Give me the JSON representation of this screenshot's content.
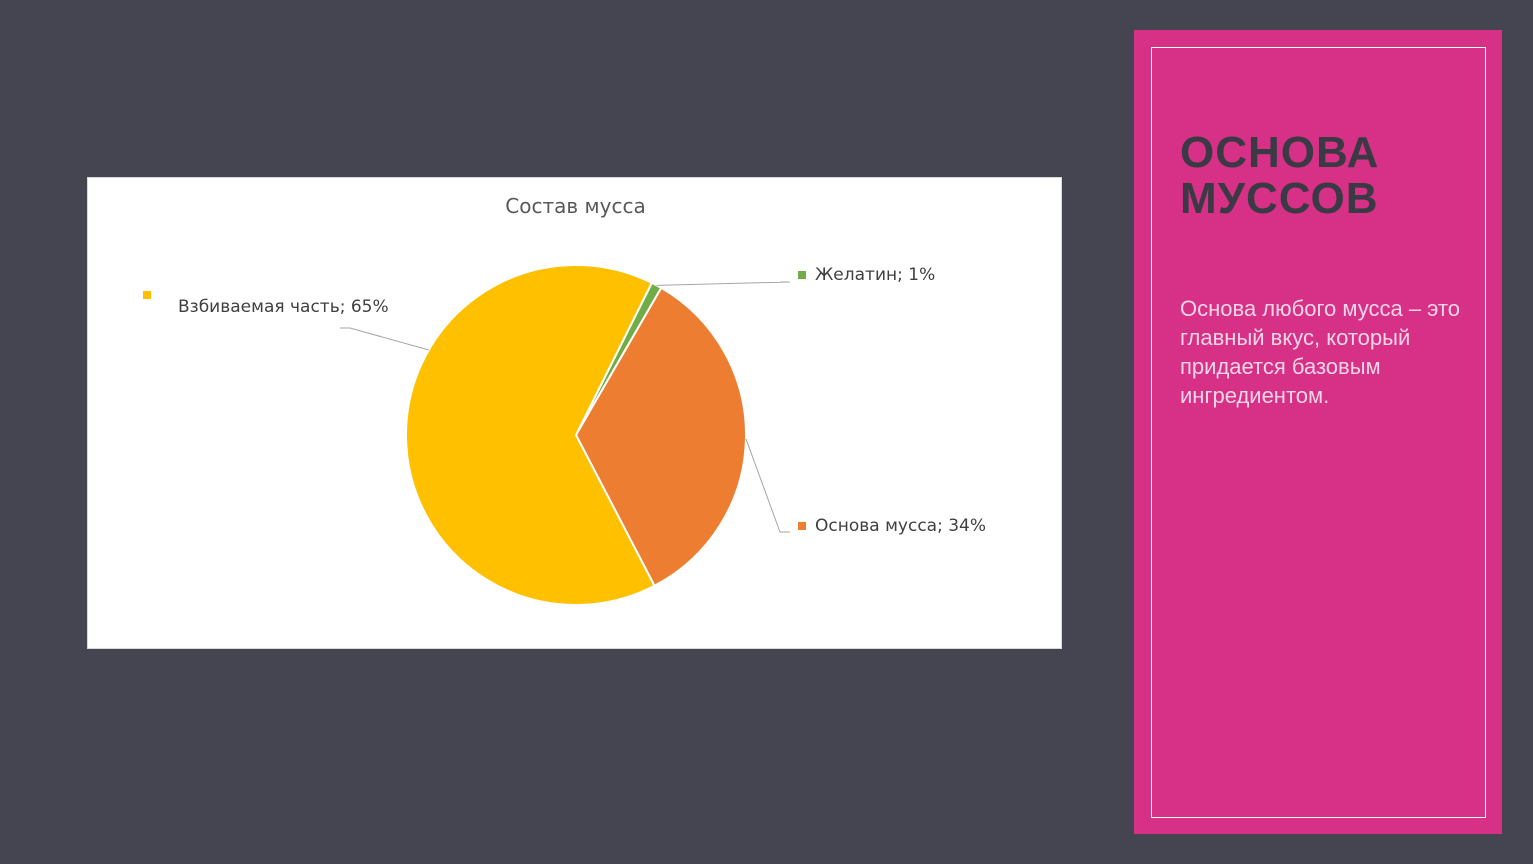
{
  "chart_data": {
    "type": "pie",
    "title": "Состав мусса",
    "slices": [
      {
        "label": "Взбиваемая часть; 65%",
        "name": "Взбиваемая часть",
        "value": 65,
        "color": "#ffc000"
      },
      {
        "label": "Желатин; 1%",
        "name": "Желатин",
        "value": 1,
        "color": "#70ad47"
      },
      {
        "label": "Основа мусса; 34%",
        "name": "Основа мусса",
        "value": 34,
        "color": "#ed7d31"
      }
    ],
    "legend": "none",
    "data_labels": "outside with leader lines"
  },
  "side": {
    "title": "ОСНОВА МУССОВ",
    "text": "Основа любого мусса – это главный вкус, который придается базовым ингредиентом."
  },
  "colors": {
    "background": "#454551",
    "panel": "#d63087"
  }
}
